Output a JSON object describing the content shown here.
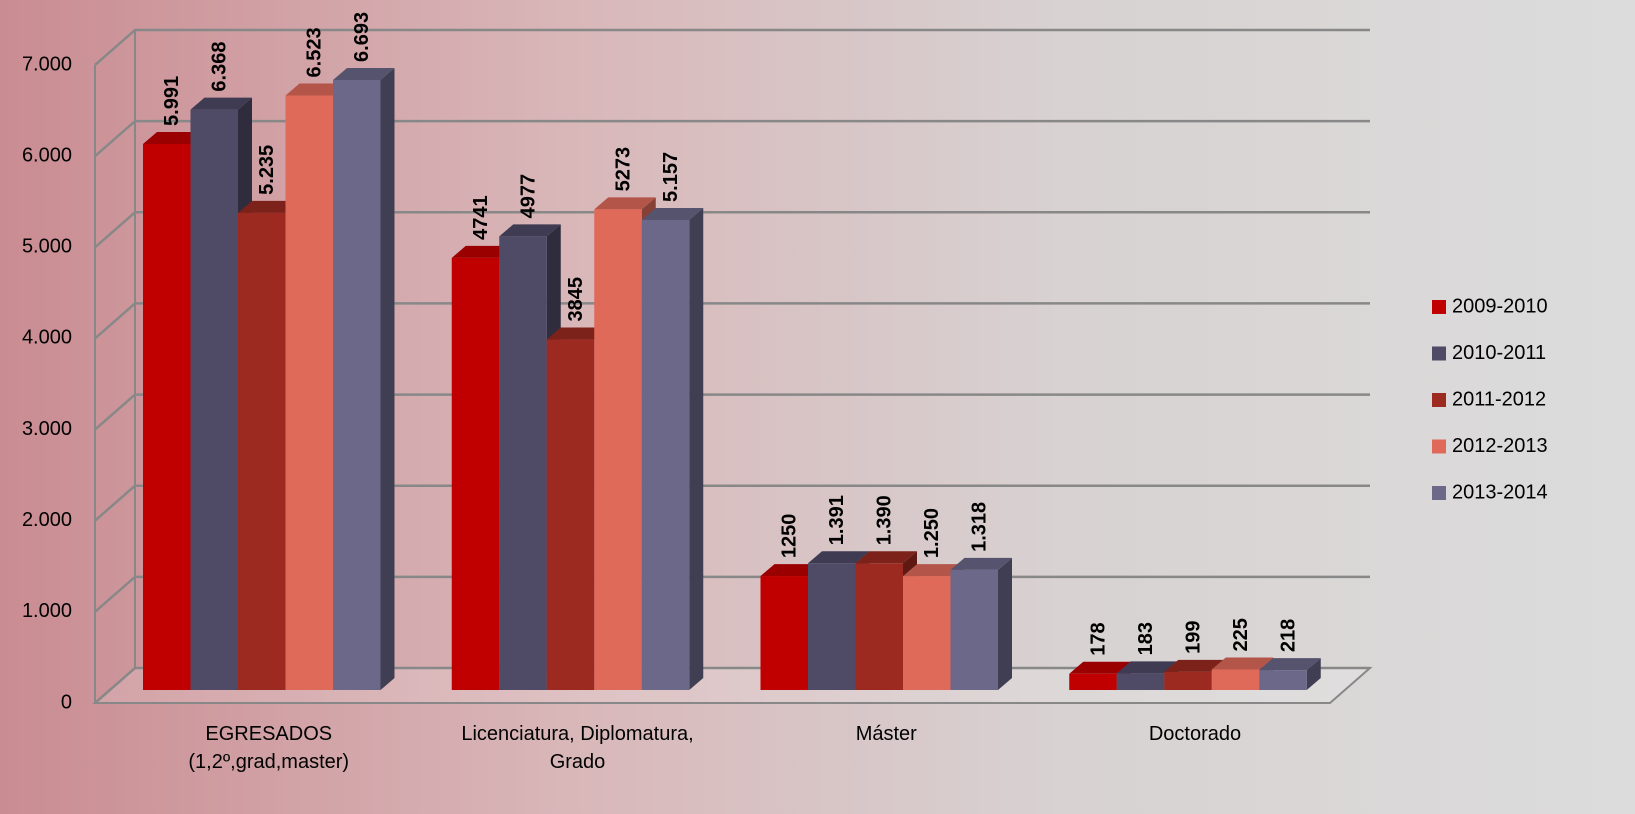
{
  "chart_data": {
    "type": "bar3d",
    "categories": [
      "EGRESADOS\n(1,2º,grad,master)",
      "Licenciatura, Diplomatura,\nGrado",
      "Máster",
      "Doctorado"
    ],
    "series": [
      {
        "name": "2009-2010",
        "color": "#c00000",
        "values": [
          5991,
          4741,
          1250,
          178
        ],
        "value_labels": [
          "5.991",
          "4741",
          "1250",
          "178"
        ]
      },
      {
        "name": "2010-2011",
        "color": "#4f4a66",
        "values": [
          6368,
          4977,
          1391,
          183
        ],
        "value_labels": [
          "6.368",
          "4977",
          "1.391",
          "183"
        ]
      },
      {
        "name": "2011-2012",
        "color": "#9c2a20",
        "values": [
          5235,
          3845,
          1390,
          199
        ],
        "value_labels": [
          "5.235",
          "3845",
          "1.390",
          "199"
        ]
      },
      {
        "name": "2012-2013",
        "color": "#e06a5a",
        "values": [
          6523,
          5273,
          1250,
          225
        ],
        "value_labels": [
          "6.523",
          "5273",
          "1.250",
          "225"
        ]
      },
      {
        "name": "2013-2014",
        "color": "#6b688a",
        "values": [
          6693,
          5157,
          1318,
          218
        ],
        "value_labels": [
          "6.693",
          "5.157",
          "1.318",
          "218"
        ]
      }
    ],
    "ylim": [
      0,
      7000
    ],
    "yticks": [
      0,
      {
        "value": 1000,
        "label": "1.000"
      },
      {
        "value": 2000,
        "label": "2.000"
      },
      {
        "value": 3000,
        "label": "3.000"
      },
      {
        "value": 4000,
        "label": "4.000"
      },
      {
        "value": 5000,
        "label": "5.000"
      },
      {
        "value": 6000,
        "label": "6.000"
      },
      {
        "value": 7000,
        "label": "7.000"
      }
    ],
    "grid": true,
    "legend": "right"
  }
}
